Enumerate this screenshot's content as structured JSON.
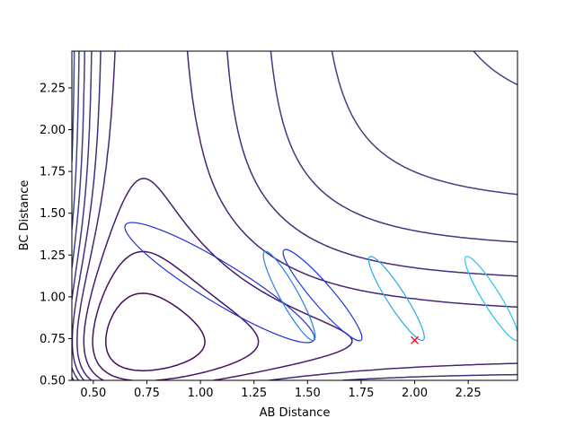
{
  "chart_data": {
    "type": "contour",
    "title": "",
    "xlabel": "AB Distance",
    "ylabel": "BC Distance",
    "xlim": [
      0.4,
      2.48
    ],
    "ylim": [
      0.5,
      2.47
    ],
    "xticks": [
      0.5,
      0.75,
      1.0,
      1.25,
      1.5,
      1.75,
      2.0,
      2.25
    ],
    "xtick_labels": [
      "0.50",
      "0.75",
      "1.00",
      "1.25",
      "1.50",
      "1.75",
      "2.00",
      "2.25"
    ],
    "yticks": [
      0.5,
      0.75,
      1.0,
      1.25,
      1.5,
      1.75,
      2.0,
      2.25
    ],
    "ytick_labels": [
      "0.50",
      "0.75",
      "1.00",
      "1.25",
      "1.50",
      "1.75",
      "2.00",
      "2.25"
    ],
    "grid": false,
    "colormap": "viridis",
    "contours": {
      "well_depth": 1.0,
      "morse_a": 2.2,
      "well_center": 0.74,
      "asymptote_floor": 1.05,
      "coupling_width": 0.8,
      "levels": [
        -0.9,
        -0.65,
        -0.4,
        -0.15,
        0.1,
        0.35,
        0.6,
        0.85,
        1.1,
        1.35,
        1.6,
        1.85,
        2.1,
        2.35,
        2.6,
        2.85,
        3.1,
        3.35,
        3.6,
        3.85,
        4.1,
        4.35,
        4.6,
        4.85,
        5.1,
        5.35,
        5.6,
        5.85,
        6.1,
        6.35,
        6.6,
        6.85,
        7.1,
        7.35,
        7.6,
        7.85,
        8.1,
        8.35
      ]
    },
    "trajectory_ellipses": [
      {
        "cx": 1.53,
        "cy": 0.74,
        "tx": 0.65,
        "ty": 1.43,
        "color": "#1f2fd0"
      },
      {
        "cx": 1.75,
        "cy": 0.74,
        "tx": 1.39,
        "ty": 1.28,
        "color": "#1a3ad8"
      },
      {
        "cx": 1.53,
        "cy": 0.74,
        "tx": 1.3,
        "ty": 1.27,
        "color": "#2a7fe8"
      },
      {
        "cx": 2.04,
        "cy": 0.74,
        "tx": 1.79,
        "ty": 1.24,
        "color": "#28a8ee"
      },
      {
        "cx": 2.48,
        "cy": 0.74,
        "tx": 2.24,
        "ty": 1.24,
        "color": "#22c4ee"
      }
    ],
    "marker": {
      "x": 2.0,
      "y": 0.74,
      "symbol": "x",
      "color": "#e8151b"
    }
  }
}
